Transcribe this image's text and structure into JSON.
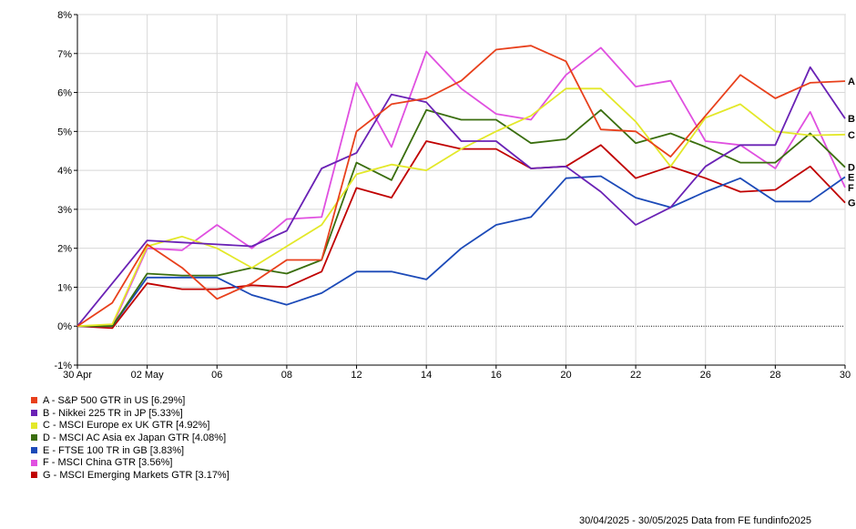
{
  "chart_data": {
    "type": "line",
    "ylim": [
      -1,
      8
    ],
    "y_ticks": [
      -1,
      0,
      1,
      2,
      3,
      4,
      5,
      6,
      7,
      8
    ],
    "y_tick_labels": [
      "-1%",
      "0%",
      "1%",
      "2%",
      "3%",
      "4%",
      "5%",
      "6%",
      "7%",
      "8%"
    ],
    "x_tick_labels": [
      "30 Apr",
      "02 May",
      "06",
      "08",
      "12",
      "14",
      "16",
      "20",
      "22",
      "26",
      "28",
      "30"
    ],
    "x_tick_index": [
      0,
      2,
      4,
      6,
      8,
      10,
      12,
      14,
      16,
      18,
      20,
      22
    ],
    "n_points": 23,
    "grid": true,
    "zero_line": true,
    "series": [
      {
        "tag": "A",
        "name": "A - S&P 500 GTR in US [6.29%]",
        "color": "#e8401c",
        "values": [
          0,
          0.6,
          2.1,
          1.5,
          0.7,
          1.1,
          1.7,
          1.7,
          5.0,
          5.7,
          5.85,
          6.3,
          7.1,
          7.2,
          6.8,
          5.05,
          5.0,
          4.35,
          5.4,
          6.45,
          5.85,
          6.25,
          6.29
        ]
      },
      {
        "tag": "B",
        "name": "B - Nikkei 225 TR in JP [5.33%]",
        "color": "#6a22b5",
        "values": [
          0,
          1.1,
          2.2,
          2.15,
          2.1,
          2.05,
          2.45,
          4.05,
          4.45,
          5.95,
          5.75,
          4.75,
          4.75,
          4.05,
          4.1,
          3.45,
          2.6,
          3.05,
          4.1,
          4.65,
          4.65,
          6.65,
          5.33
        ]
      },
      {
        "tag": "C",
        "name": "C - MSCI Europe ex UK GTR [4.92%]",
        "color": "#e3e829",
        "values": [
          0,
          0.05,
          2.05,
          2.3,
          2.0,
          1.5,
          2.05,
          2.6,
          3.9,
          4.15,
          4.0,
          4.55,
          5.0,
          5.4,
          6.1,
          6.1,
          5.25,
          4.1,
          5.35,
          5.7,
          5.0,
          4.9,
          4.92
        ]
      },
      {
        "tag": "D",
        "name": "D - MSCI AC Asia ex Japan GTR [4.08%]",
        "color": "#3a6e0e",
        "values": [
          0,
          0.0,
          1.35,
          1.3,
          1.3,
          1.5,
          1.35,
          1.7,
          4.2,
          3.75,
          5.55,
          5.3,
          5.3,
          4.7,
          4.8,
          5.55,
          4.7,
          4.95,
          4.6,
          4.2,
          4.2,
          4.95,
          4.08
        ]
      },
      {
        "tag": "E",
        "name": "E - FTSE 100 TR in GB [3.83%]",
        "color": "#1c4ab8",
        "values": [
          0,
          0.0,
          1.25,
          1.25,
          1.25,
          0.8,
          0.55,
          0.85,
          1.4,
          1.4,
          1.2,
          2.0,
          2.6,
          2.8,
          3.8,
          3.85,
          3.3,
          3.05,
          3.45,
          3.8,
          3.2,
          3.2,
          3.83
        ]
      },
      {
        "tag": "F",
        "name": "F - MSCI China GTR [3.56%]",
        "color": "#e050e0",
        "values": [
          0,
          0.0,
          2.0,
          1.95,
          2.6,
          2.0,
          2.75,
          2.8,
          6.25,
          4.6,
          7.05,
          6.1,
          5.45,
          5.3,
          6.45,
          7.15,
          6.15,
          6.3,
          4.75,
          4.65,
          4.05,
          5.5,
          3.56
        ]
      },
      {
        "tag": "G",
        "name": "G - MSCI Emerging Markets GTR [3.17%]",
        "color": "#c00000",
        "values": [
          0,
          -0.05,
          1.1,
          0.95,
          0.95,
          1.05,
          1.0,
          1.4,
          3.55,
          3.3,
          4.75,
          4.55,
          4.55,
          4.05,
          4.1,
          4.65,
          3.8,
          4.1,
          3.8,
          3.45,
          3.5,
          4.1,
          3.17
        ]
      }
    ]
  },
  "footer": "30/04/2025 - 30/05/2025 Data from FE fundinfo2025"
}
